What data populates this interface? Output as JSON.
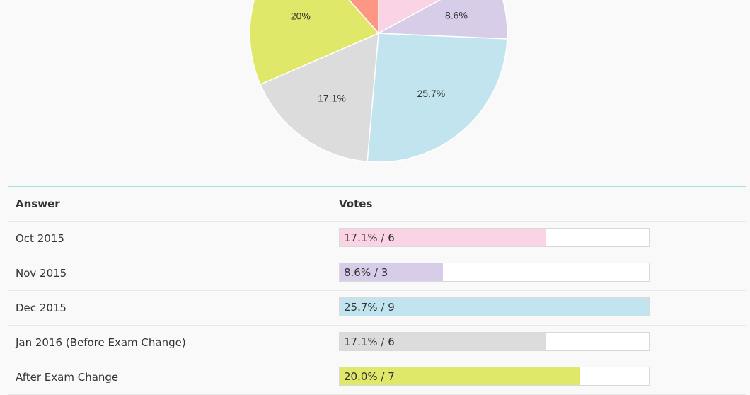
{
  "chart_data": {
    "type": "pie",
    "slices": [
      {
        "label": "Oct 2015",
        "value": 17.1,
        "votes": 6,
        "color": "#fad4e4",
        "display": ""
      },
      {
        "label": "Nov 2015",
        "value": 8.6,
        "votes": 3,
        "color": "#d7cde8",
        "display": "8.6%"
      },
      {
        "label": "Dec 2015",
        "value": 25.7,
        "votes": 9,
        "color": "#c2e4ee",
        "display": "25.7%"
      },
      {
        "label": "Jan 2016 (Before Exam Change)",
        "value": 17.1,
        "votes": 6,
        "color": "#dcdcdc",
        "display": "17.1%"
      },
      {
        "label": "After Exam Change",
        "value": 20.0,
        "votes": 7,
        "color": "#dfe868",
        "display": "20%"
      },
      {
        "label": "",
        "value": 11.5,
        "votes": null,
        "color": "#fd9784",
        "display": ""
      }
    ]
  },
  "table": {
    "header": {
      "answer": "Answer",
      "votes": "Votes"
    },
    "rows": [
      {
        "answer": "Oct 2015",
        "vote_text": "17.1% / 6",
        "percent": 17.1,
        "color": "#fad4e4"
      },
      {
        "answer": "Nov 2015",
        "vote_text": "8.6% / 3",
        "percent": 8.6,
        "color": "#d7cde8"
      },
      {
        "answer": "Dec 2015",
        "vote_text": "25.7% / 9",
        "percent": 25.7,
        "color": "#c2e4ee"
      },
      {
        "answer": "Jan 2016 (Before Exam Change)",
        "vote_text": "17.1% / 6",
        "percent": 17.1,
        "color": "#dcdcdc"
      },
      {
        "answer": "After Exam Change",
        "vote_text": "20.0% / 7",
        "percent": 20.0,
        "color": "#dfe868"
      }
    ]
  }
}
